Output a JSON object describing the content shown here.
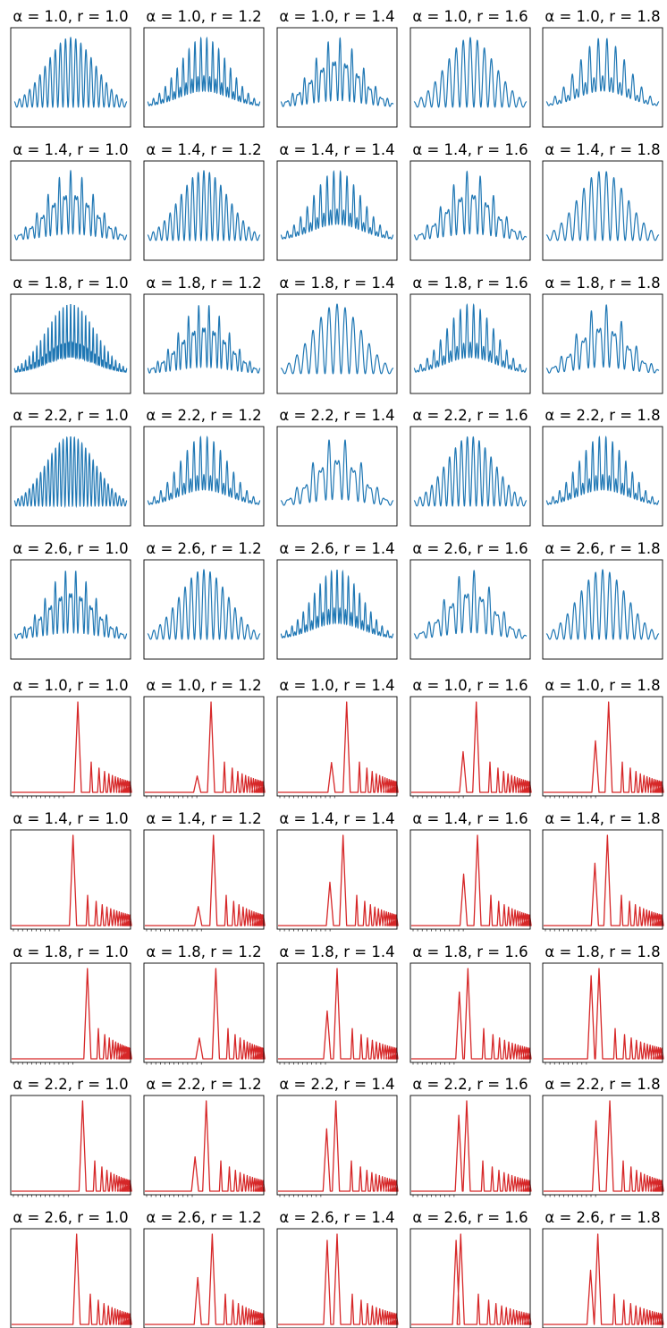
{
  "figure": {
    "row_alphas": [
      "1.0",
      "1.4",
      "1.8",
      "2.2",
      "2.6"
    ],
    "col_rs": [
      "1.0",
      "1.2",
      "1.4",
      "1.6",
      "1.8"
    ],
    "waveform_color": "#1f77b4",
    "spectrum_color": "#d62728"
  },
  "chart_data": [
    {
      "type": "line",
      "block": "time-domain waveforms",
      "layout": "5x5 grid, rows alpha, columns r",
      "titles": [
        [
          "α = 1.0, r = 1.0",
          "α = 1.0, r = 1.2",
          "α = 1.0, r = 1.4",
          "α = 1.0, r = 1.6",
          "α = 1.0, r = 1.8"
        ],
        [
          "α = 1.4, r = 1.0",
          "α = 1.4, r = 1.2",
          "α = 1.4, r = 1.4",
          "α = 1.4, r = 1.6",
          "α = 1.4, r = 1.8"
        ],
        [
          "α = 1.8, r = 1.0",
          "α = 1.8, r = 1.2",
          "α = 1.8, r = 1.4",
          "α = 1.8, r = 1.6",
          "α = 1.8, r = 1.8"
        ],
        [
          "α = 2.2, r = 1.0",
          "α = 2.2, r = 1.2",
          "α = 2.2, r = 1.4",
          "α = 2.2, r = 1.6",
          "α = 2.2, r = 1.8"
        ],
        [
          "α = 2.6, r = 1.0",
          "α = 2.6, r = 1.2",
          "α = 2.6, r = 1.4",
          "α = 2.6, r = 1.6",
          "α = 2.6, r = 1.8"
        ]
      ],
      "envelope": "gaussian",
      "carrier_cycles": [
        [
          22,
          19,
          19,
          16,
          13
        ],
        [
          20,
          20,
          17,
          17,
          15
        ],
        [
          30,
          22,
          14,
          17,
          15
        ],
        [
          30,
          17,
          14,
          19,
          17
        ],
        [
          22,
          18,
          20,
          15,
          16
        ]
      ],
      "axes_ticks": "hidden",
      "grid": false
    },
    {
      "type": "line",
      "block": "harmonic spectra",
      "layout": "5x5 grid, rows alpha, columns r",
      "x_scale": "log",
      "titles": [
        [
          "α = 1.0, r = 1.0",
          "α = 1.0, r = 1.2",
          "α = 1.0, r = 1.4",
          "α = 1.0, r = 1.6",
          "α = 1.0, r = 1.8"
        ],
        [
          "α = 1.4, r = 1.0",
          "α = 1.4, r = 1.2",
          "α = 1.4, r = 1.4",
          "α = 1.4, r = 1.6",
          "α = 1.4, r = 1.8"
        ],
        [
          "α = 1.8, r = 1.0",
          "α = 1.8, r = 1.2",
          "α = 1.8, r = 1.4",
          "α = 1.8, r = 1.6",
          "α = 1.8, r = 1.8"
        ],
        [
          "α = 2.2, r = 1.0",
          "α = 2.2, r = 1.2",
          "α = 2.2, r = 1.4",
          "α = 2.2, r = 1.6",
          "α = 2.2, r = 1.8"
        ],
        [
          "α = 2.6, r = 1.0",
          "α = 2.6, r = 1.2",
          "α = 2.6, r = 1.4",
          "α = 2.6, r = 1.6",
          "α = 2.6, r = 1.8"
        ]
      ],
      "fundamental_rel": [
        [
          0.56,
          0.56,
          0.58,
          0.55,
          0.55
        ],
        [
          0.52,
          0.58,
          0.55,
          0.56,
          0.54
        ],
        [
          0.64,
          0.6,
          0.5,
          0.48,
          0.47
        ],
        [
          0.6,
          0.52,
          0.49,
          0.47,
          0.56
        ],
        [
          0.55,
          0.57,
          0.5,
          0.42,
          0.46
        ]
      ],
      "peaks": [
        [
          [
            1.0,
            1.0
          ],
          [
            1.0,
            1.0
          ],
          [
            1.0,
            1.0
          ],
          [
            1.0,
            1.0
          ],
          [
            1.0,
            1.0
          ]
        ],
        [
          [
            1.0,
            1.0
          ],
          [
            1.0,
            1.0
          ],
          [
            1.0,
            1.0
          ],
          [
            1.0,
            1.0
          ],
          [
            1.0,
            1.0
          ]
        ],
        [
          [
            1.0,
            1.0
          ],
          [
            1.0,
            1.0
          ],
          [
            1.0,
            1.0
          ],
          [
            1.0,
            1.0
          ],
          [
            1.0,
            1.0
          ]
        ],
        [
          [
            1.0,
            1.0
          ],
          [
            1.0,
            1.0
          ],
          [
            1.0,
            1.0
          ],
          [
            1.0,
            1.0
          ],
          [
            1.0,
            1.0
          ]
        ],
        [
          [
            1.0,
            1.0
          ],
          [
            1.0,
            1.0
          ],
          [
            1.0,
            1.0
          ],
          [
            1.0,
            1.0
          ],
          [
            1.0,
            1.0
          ]
        ]
      ],
      "subharmonic": [
        [
          null,
          [
            0.6,
            0.18
          ],
          [
            0.64,
            0.33
          ],
          [
            0.6,
            0.45
          ],
          [
            0.57,
            0.57
          ]
        ],
        [
          null,
          [
            0.62,
            0.21
          ],
          [
            0.62,
            0.48
          ],
          [
            0.64,
            0.57
          ],
          [
            0.63,
            0.69
          ]
        ],
        [
          null,
          [
            0.63,
            0.23
          ],
          [
            0.62,
            0.53
          ],
          [
            0.67,
            0.74
          ],
          [
            0.75,
            0.92
          ]
        ],
        [
          null,
          [
            0.6,
            0.38
          ],
          [
            0.65,
            0.69
          ],
          [
            0.73,
            0.84
          ],
          [
            0.63,
            0.78
          ]
        ],
        [
          null,
          [
            0.63,
            0.52
          ],
          [
            0.75,
            0.93
          ],
          [
            0.63,
            0.93
          ],
          [
            0.55,
            0.6
          ]
        ]
      ],
      "axes_ticks": "log minor ticks on x only",
      "grid": false
    }
  ]
}
